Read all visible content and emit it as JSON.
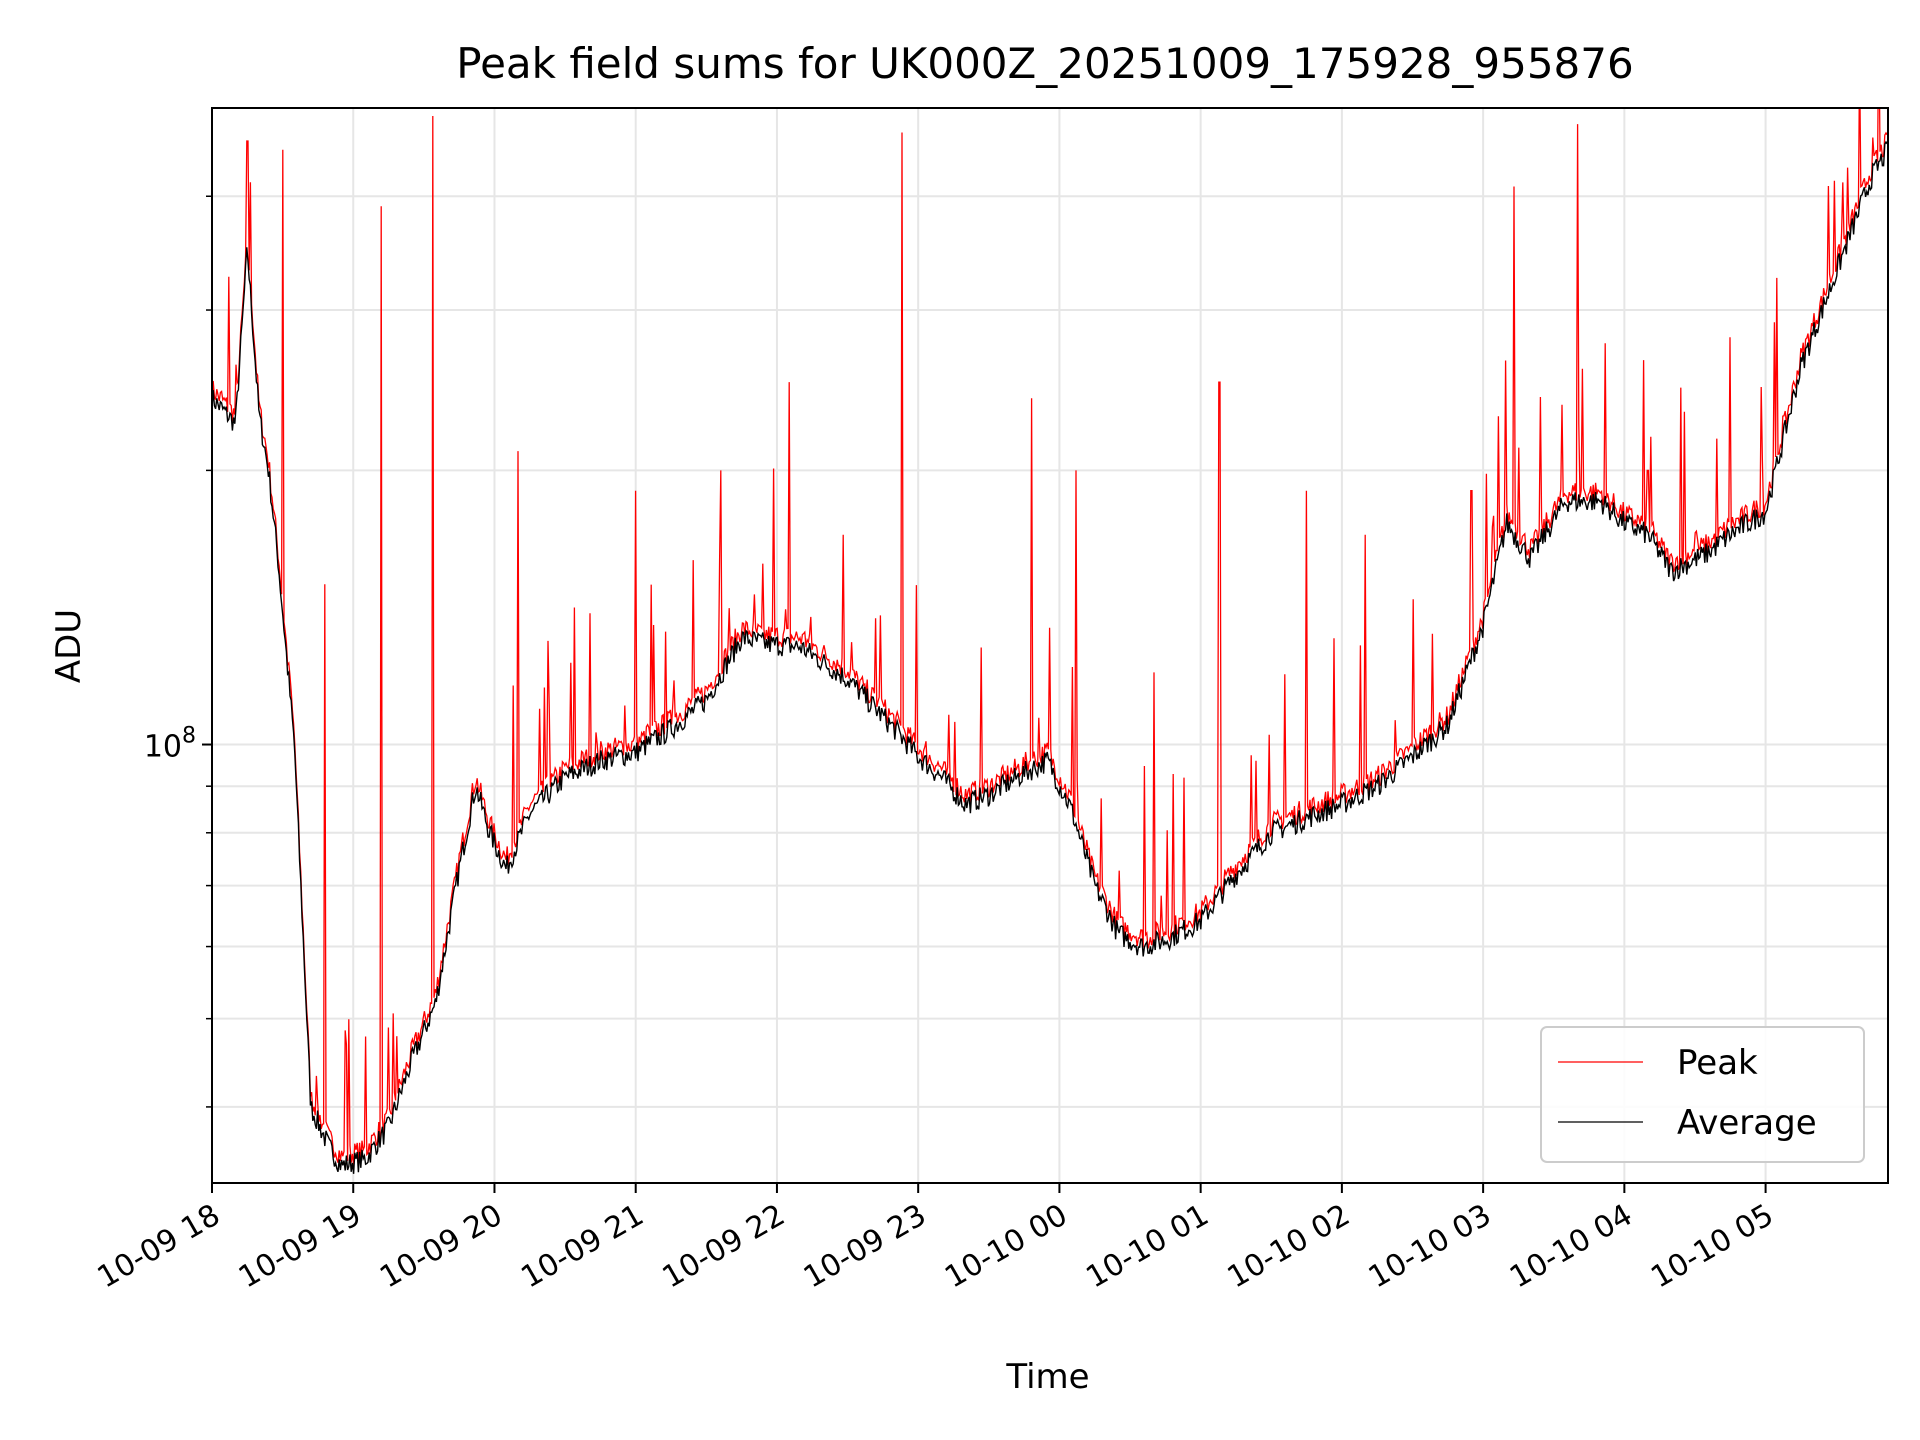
{
  "chart_data": {
    "type": "line",
    "title": "Peak field sums for UK000Z_20251009_175928_955876",
    "xlabel": "Time",
    "ylabel": "ADU",
    "y_scale": "log",
    "ylim": [
      33000000,
      500000000
    ],
    "y_tick_label": "10⁸",
    "y_tick_base": "10",
    "y_tick_exp": "8",
    "y_major_tick": 100000000,
    "y_minor_ticks": [
      40000000,
      50000000,
      60000000,
      70000000,
      80000000,
      90000000,
      200000000,
      300000000,
      400000000
    ],
    "xlim": [
      "2025-10-09 18:00",
      "2025-10-10 05:52"
    ],
    "x_ticks": [
      "2025-10-09 18:00",
      "2025-10-09 19:00",
      "2025-10-09 20:00",
      "2025-10-09 21:00",
      "2025-10-09 22:00",
      "2025-10-09 23:00",
      "2025-10-10 00:00",
      "2025-10-10 01:00",
      "2025-10-10 02:00",
      "2025-10-10 03:00",
      "2025-10-10 04:00",
      "2025-10-10 05:00"
    ],
    "x_tick_labels": [
      "10-09 18",
      "10-09 19",
      "10-09 20",
      "10-09 21",
      "10-09 22",
      "10-09 23",
      "10-10 00",
      "10-10 01",
      "10-10 02",
      "10-10 03",
      "10-10 04",
      "10-10 05"
    ],
    "grid": true,
    "legend_position": "lower-right",
    "series": [
      {
        "name": "Average",
        "color": "#000000",
        "x": [
          "2025-10-09 18:00",
          "2025-10-09 18:10",
          "2025-10-09 18:15",
          "2025-10-09 18:20",
          "2025-10-09 18:24",
          "2025-10-09 18:28",
          "2025-10-09 18:35",
          "2025-10-09 18:42",
          "2025-10-09 18:50",
          "2025-10-09 18:55",
          "2025-10-09 19:05",
          "2025-10-09 19:15",
          "2025-10-09 19:25",
          "2025-10-09 19:35",
          "2025-10-09 19:45",
          "2025-10-09 19:52",
          "2025-10-09 19:58",
          "2025-10-09 20:05",
          "2025-10-09 20:15",
          "2025-10-09 20:30",
          "2025-10-09 20:45",
          "2025-10-09 21:00",
          "2025-10-09 21:15",
          "2025-10-09 21:30",
          "2025-10-09 21:45",
          "2025-10-09 21:55",
          "2025-10-09 22:10",
          "2025-10-09 22:30",
          "2025-10-09 22:50",
          "2025-10-09 23:00",
          "2025-10-09 23:10",
          "2025-10-09 23:20",
          "2025-10-09 23:30",
          "2025-10-09 23:45",
          "2025-10-09 23:55",
          "2025-10-10 00:05",
          "2025-10-10 00:15",
          "2025-10-10 00:25",
          "2025-10-10 00:35",
          "2025-10-10 00:45",
          "2025-10-10 01:00",
          "2025-10-10 01:15",
          "2025-10-10 01:30",
          "2025-10-10 01:45",
          "2025-10-10 02:00",
          "2025-10-10 02:15",
          "2025-10-10 02:30",
          "2025-10-10 02:45",
          "2025-10-10 03:00",
          "2025-10-10 03:10",
          "2025-10-10 03:20",
          "2025-10-10 03:35",
          "2025-10-10 03:50",
          "2025-10-10 04:00",
          "2025-10-10 04:10",
          "2025-10-10 04:20",
          "2025-10-10 04:35",
          "2025-10-10 04:45",
          "2025-10-10 05:00",
          "2025-10-10 05:15",
          "2025-10-10 05:30",
          "2025-10-10 05:45",
          "2025-10-10 05:52"
        ],
        "values": [
          240000000,
          225000000,
          350000000,
          230000000,
          200000000,
          160000000,
          100000000,
          40000000,
          36000000,
          34500000,
          35000000,
          38000000,
          45000000,
          52000000,
          73000000,
          90000000,
          80000000,
          73000000,
          84000000,
          92000000,
          96000000,
          98000000,
          104000000,
          112000000,
          131000000,
          129000000,
          128000000,
          118000000,
          104000000,
          97000000,
          92000000,
          86000000,
          88000000,
          93000000,
          96000000,
          85000000,
          70000000,
          62000000,
          60000000,
          61000000,
          64000000,
          72000000,
          80000000,
          83000000,
          86000000,
          90000000,
          97000000,
          105000000,
          135000000,
          175000000,
          160000000,
          185000000,
          185000000,
          175000000,
          170000000,
          155000000,
          162000000,
          170000000,
          180000000,
          260000000,
          330000000,
          420000000,
          450000000
        ]
      },
      {
        "name": "Peak",
        "color": "#ff0000",
        "spikes": [
          {
            "x": "2025-10-09 18:15",
            "value": 460000000
          },
          {
            "x": "2025-10-09 18:30",
            "value": 450000000
          },
          {
            "x": "2025-10-09 18:48",
            "value": 150000000
          },
          {
            "x": "2025-10-09 19:12",
            "value": 390000000
          },
          {
            "x": "2025-10-09 19:34",
            "value": 490000000
          },
          {
            "x": "2025-10-09 20:10",
            "value": 210000000
          },
          {
            "x": "2025-10-09 21:00",
            "value": 190000000
          },
          {
            "x": "2025-10-09 21:36",
            "value": 200000000
          },
          {
            "x": "2025-10-09 22:05",
            "value": 250000000
          },
          {
            "x": "2025-10-09 22:53",
            "value": 470000000
          },
          {
            "x": "2025-10-09 23:48",
            "value": 240000000
          },
          {
            "x": "2025-10-10 00:07",
            "value": 200000000
          },
          {
            "x": "2025-10-10 00:40",
            "value": 120000000
          },
          {
            "x": "2025-10-10 01:08",
            "value": 250000000
          },
          {
            "x": "2025-10-10 01:45",
            "value": 190000000
          },
          {
            "x": "2025-10-10 02:10",
            "value": 170000000
          },
          {
            "x": "2025-10-10 02:55",
            "value": 190000000
          },
          {
            "x": "2025-10-10 03:13",
            "value": 410000000
          },
          {
            "x": "2025-10-10 03:40",
            "value": 480000000
          },
          {
            "x": "2025-10-10 04:10",
            "value": 200000000
          },
          {
            "x": "2025-10-10 04:45",
            "value": 280000000
          },
          {
            "x": "2025-10-10 05:35",
            "value": 430000000
          }
        ]
      }
    ]
  }
}
